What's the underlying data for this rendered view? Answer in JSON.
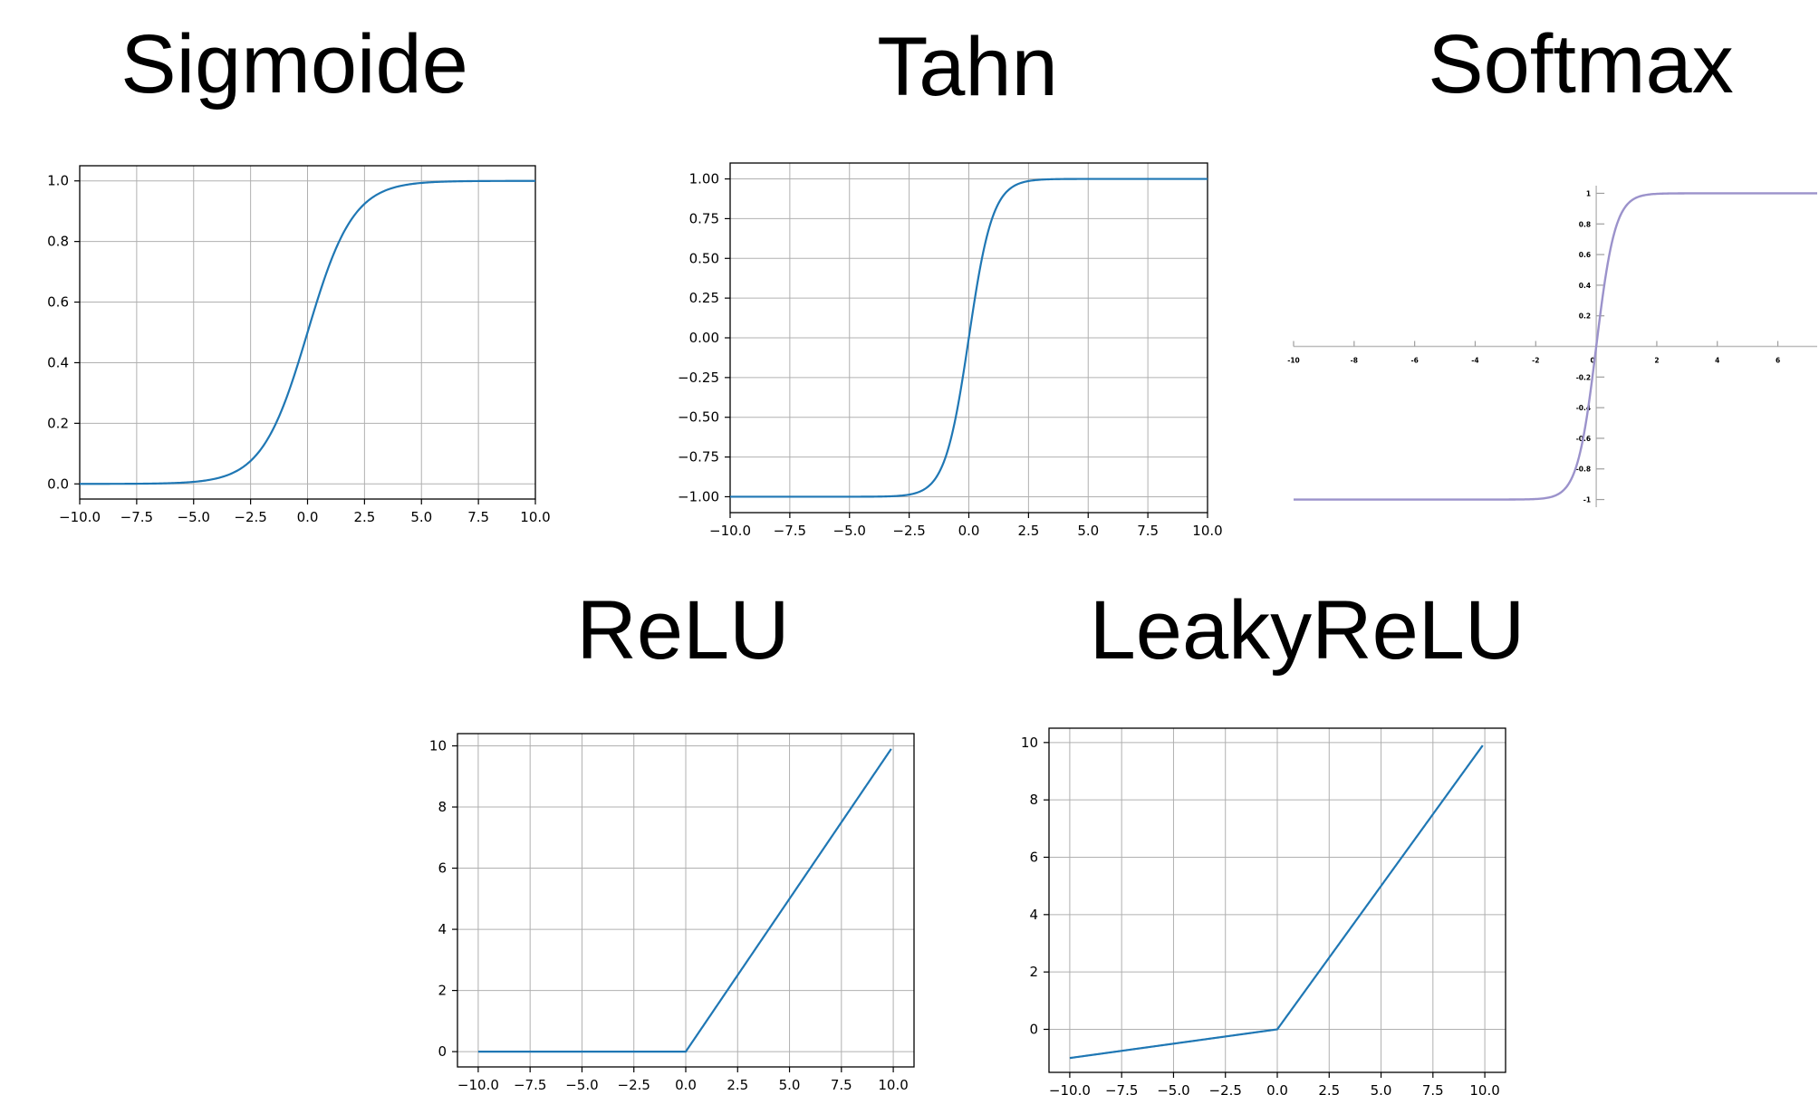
{
  "titles": {
    "sigmoid": "Sigmoide",
    "tanh": "Tahn",
    "softmax": "Softmax",
    "relu": "ReLU",
    "leaky": "LeakyReLU"
  },
  "colors": {
    "line": "#1f77b4",
    "softmax_line": "#9b92cb",
    "grid": "#b0b0b0",
    "axis": "#000000"
  },
  "chart_data": [
    {
      "id": "sigmoid",
      "type": "line",
      "title": "Sigmoide",
      "function": "sigmoid",
      "xlim": [
        -10.0,
        10.0
      ],
      "ylim": [
        -0.05,
        1.05
      ],
      "xticks": [
        -10.0,
        -7.5,
        -5.0,
        -2.5,
        0.0,
        2.5,
        5.0,
        7.5,
        10.0
      ],
      "xtick_labels": [
        "−10.0",
        "−7.5",
        "−5.0",
        "−2.5",
        "0.0",
        "2.5",
        "5.0",
        "7.5",
        "10.0"
      ],
      "yticks": [
        0.0,
        0.2,
        0.4,
        0.6,
        0.8,
        1.0
      ],
      "ytick_labels": [
        "0.0",
        "0.2",
        "0.4",
        "0.6",
        "0.8",
        "1.0"
      ],
      "grid": true,
      "x": [
        -10,
        -5,
        -2.5,
        0,
        2.5,
        5,
        10
      ],
      "y": [
        0.0,
        0.007,
        0.076,
        0.5,
        0.924,
        0.993,
        1.0
      ]
    },
    {
      "id": "tanh",
      "type": "line",
      "title": "Tahn",
      "function": "tanh",
      "xlim": [
        -10.0,
        10.0
      ],
      "ylim": [
        -1.1,
        1.1
      ],
      "xticks": [
        -10.0,
        -7.5,
        -5.0,
        -2.5,
        0.0,
        2.5,
        5.0,
        7.5,
        10.0
      ],
      "xtick_labels": [
        "−10.0",
        "−7.5",
        "−5.0",
        "−2.5",
        "0.0",
        "2.5",
        "5.0",
        "7.5",
        "10.0"
      ],
      "yticks": [
        -1.0,
        -0.75,
        -0.5,
        -0.25,
        0.0,
        0.25,
        0.5,
        0.75,
        1.0
      ],
      "ytick_labels": [
        "−1.00",
        "−0.75",
        "−0.50",
        "−0.25",
        "0.00",
        "0.25",
        "0.50",
        "0.75",
        "1.00"
      ],
      "grid": true,
      "x": [
        -10,
        -2.5,
        -1,
        0,
        1,
        2.5,
        10
      ],
      "y": [
        -1.0,
        -0.987,
        -0.762,
        0.0,
        0.762,
        0.987,
        1.0
      ]
    },
    {
      "id": "softmax",
      "type": "line",
      "title": "Softmax",
      "function": "tanh",
      "xlim": [
        -10,
        7.3
      ],
      "ylim": [
        -1.05,
        1.05
      ],
      "xticks": [
        -10,
        -8,
        -6,
        -4,
        -2,
        0,
        2,
        4,
        6
      ],
      "xtick_labels": [
        "-10",
        "-8",
        "-6",
        "-4",
        "-2",
        "0",
        "2",
        "4",
        "6"
      ],
      "yticks": [
        -1,
        -0.8,
        -0.6,
        -0.4,
        -0.2,
        0.2,
        0.4,
        0.6,
        0.8,
        1
      ],
      "ytick_labels": [
        "-1",
        "-0.8",
        "-0.6",
        "-0.4",
        "-0.2",
        "0.2",
        "0.4",
        "0.6",
        "0.8",
        "1"
      ],
      "grid": false,
      "x": [
        -10,
        -2,
        0,
        2,
        7.3
      ],
      "y": [
        -1.0,
        -0.964,
        0.0,
        0.964,
        1.0
      ]
    },
    {
      "id": "relu",
      "type": "line",
      "title": "ReLU",
      "function": "relu",
      "xlim": [
        -11.0,
        11.0
      ],
      "ylim": [
        -0.5,
        10.4
      ],
      "xticks": [
        -10.0,
        -7.5,
        -5.0,
        -2.5,
        0.0,
        2.5,
        5.0,
        7.5,
        10.0
      ],
      "xtick_labels": [
        "−10.0",
        "−7.5",
        "−5.0",
        "−2.5",
        "0.0",
        "2.5",
        "5.0",
        "7.5",
        "10.0"
      ],
      "yticks": [
        0,
        2,
        4,
        6,
        8,
        10
      ],
      "ytick_labels": [
        "0",
        "2",
        "4",
        "6",
        "8",
        "10"
      ],
      "grid": true,
      "x": [
        -10,
        0,
        9.9
      ],
      "y": [
        0,
        0,
        9.9
      ]
    },
    {
      "id": "leaky",
      "type": "line",
      "title": "LeakyReLU",
      "function": "leaky",
      "xlim": [
        -11.0,
        11.0
      ],
      "ylim": [
        -1.5,
        10.5
      ],
      "xticks": [
        -10.0,
        -7.5,
        -5.0,
        -2.5,
        0.0,
        2.5,
        5.0,
        7.5,
        10.0
      ],
      "xtick_labels": [
        "−10.0",
        "−7.5",
        "−5.0",
        "−2.5",
        "0.0",
        "2.5",
        "5.0",
        "7.5",
        "10.0"
      ],
      "yticks": [
        0,
        2,
        4,
        6,
        8,
        10
      ],
      "ytick_labels": [
        "0",
        "2",
        "4",
        "6",
        "8",
        "10"
      ],
      "grid": true,
      "x": [
        -10,
        0,
        9.9
      ],
      "y": [
        -1.0,
        0,
        9.9
      ]
    }
  ]
}
